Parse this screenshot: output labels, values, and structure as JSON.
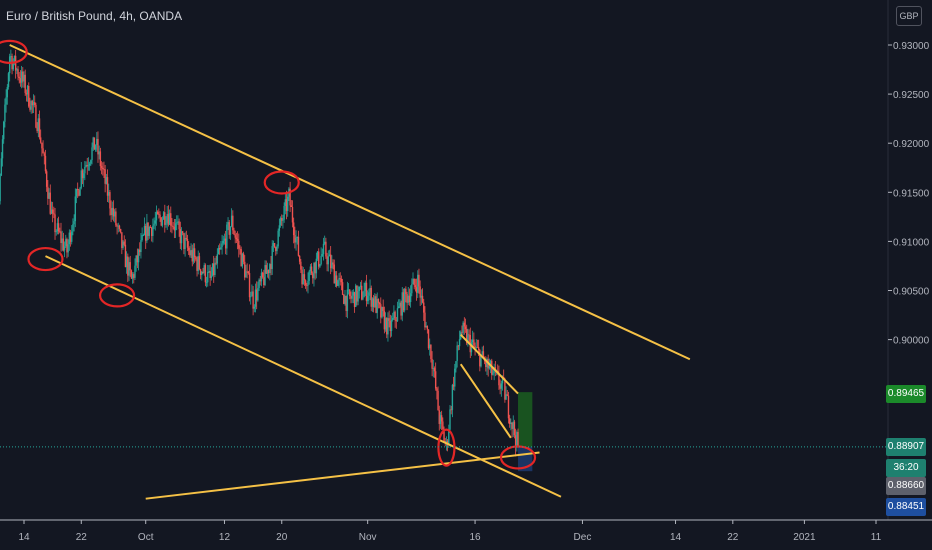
{
  "header": {
    "title": "Euro / British Pound, 4h, OANDA",
    "currency": "GBP"
  },
  "price_tags": {
    "target": "0.89465",
    "last": "0.88907",
    "countdown": "36:20",
    "stop": "0.88660",
    "low": "0.88451"
  },
  "colors": {
    "background": "#131722",
    "up_candle": "#26a69a",
    "down_candle": "#ef5350",
    "trendline": "#f5c146",
    "marker": "#e32626",
    "target_zone": "#1b5e20",
    "stop_zone": "#1e3a6e",
    "target_tag": "#1b8a2a",
    "stop_tag": "#1e4fa0",
    "last_tag": "#1e806f"
  },
  "chart_data": {
    "type": "candlestick",
    "title": "Euro / British Pound, 4h, OANDA",
    "y_unit": "GBP",
    "ylim": [
      0.8838,
      0.9325
    ],
    "y_ticks": [
      "0.93000",
      "0.92500",
      "0.92000",
      "0.91500",
      "0.91000",
      "0.90500",
      "0.90000"
    ],
    "x_ticks": [
      "14",
      "22",
      "Oct",
      "12",
      "20",
      "Nov",
      "16",
      "Dec",
      "14",
      "22",
      "2021",
      "11"
    ],
    "x_tick_dates": [
      "2020-09-14",
      "2020-09-22",
      "2020-10-01",
      "2020-10-12",
      "2020-10-20",
      "2020-11-01",
      "2020-11-16",
      "2020-12-01",
      "2020-12-14",
      "2020-12-22",
      "2021-01-01",
      "2021-01-11"
    ],
    "close_path": [
      {
        "date": "2020-09-10",
        "price": 0.908
      },
      {
        "date": "2020-09-11",
        "price": 0.92
      },
      {
        "date": "2020-09-12",
        "price": 0.929
      },
      {
        "date": "2020-09-14",
        "price": 0.926
      },
      {
        "date": "2020-09-16",
        "price": 0.922
      },
      {
        "date": "2020-09-18",
        "price": 0.912
      },
      {
        "date": "2020-09-20",
        "price": 0.909
      },
      {
        "date": "2020-09-22",
        "price": 0.917
      },
      {
        "date": "2020-09-24",
        "price": 0.92
      },
      {
        "date": "2020-09-26",
        "price": 0.914
      },
      {
        "date": "2020-09-29",
        "price": 0.906
      },
      {
        "date": "2020-10-01",
        "price": 0.911
      },
      {
        "date": "2020-10-04",
        "price": 0.913
      },
      {
        "date": "2020-10-07",
        "price": 0.909
      },
      {
        "date": "2020-10-10",
        "price": 0.906
      },
      {
        "date": "2020-10-13",
        "price": 0.912
      },
      {
        "date": "2020-10-16",
        "price": 0.904
      },
      {
        "date": "2020-10-18",
        "price": 0.907
      },
      {
        "date": "2020-10-21",
        "price": 0.9145
      },
      {
        "date": "2020-10-23",
        "price": 0.906
      },
      {
        "date": "2020-10-26",
        "price": 0.909
      },
      {
        "date": "2020-10-29",
        "price": 0.904
      },
      {
        "date": "2020-11-01",
        "price": 0.905
      },
      {
        "date": "2020-11-04",
        "price": 0.901
      },
      {
        "date": "2020-11-06",
        "price": 0.904
      },
      {
        "date": "2020-11-08",
        "price": 0.906
      },
      {
        "date": "2020-11-10",
        "price": 0.898
      },
      {
        "date": "2020-11-11",
        "price": 0.892
      },
      {
        "date": "2020-11-12",
        "price": 0.889
      },
      {
        "date": "2020-11-13",
        "price": 0.896
      },
      {
        "date": "2020-11-14",
        "price": 0.901
      },
      {
        "date": "2020-11-16",
        "price": 0.899
      },
      {
        "date": "2020-11-18",
        "price": 0.897
      },
      {
        "date": "2020-11-20",
        "price": 0.895
      },
      {
        "date": "2020-11-21",
        "price": 0.892
      },
      {
        "date": "2020-11-22",
        "price": 0.889
      }
    ],
    "trendlines": [
      {
        "name": "upper channel",
        "from": {
          "date": "2020-09-12",
          "price": 0.93
        },
        "to": {
          "date": "2020-12-16",
          "price": 0.898
        }
      },
      {
        "name": "lower channel",
        "from": {
          "date": "2020-09-17",
          "price": 0.9085
        },
        "to": {
          "date": "2020-11-28",
          "price": 0.884
        }
      },
      {
        "name": "rising support",
        "from": {
          "date": "2020-10-01",
          "price": 0.8838
        },
        "to": {
          "date": "2020-11-25",
          "price": 0.8885
        }
      },
      {
        "name": "wedge top",
        "from": {
          "date": "2020-11-14",
          "price": 0.9005
        },
        "to": {
          "date": "2020-11-22",
          "price": 0.8945
        }
      },
      {
        "name": "wedge bottom",
        "from": {
          "date": "2020-11-14",
          "price": 0.8975
        },
        "to": {
          "date": "2020-11-21",
          "price": 0.89
        }
      }
    ],
    "position": {
      "type": "long",
      "entry": 0.88907,
      "target": 0.89465,
      "stop": 0.8866,
      "start": "2020-11-22",
      "end": "2020-11-24"
    },
    "highlighted_points": [
      {
        "date": "2020-09-12",
        "price": 0.9293
      },
      {
        "date": "2020-09-17",
        "price": 0.9082
      },
      {
        "date": "2020-09-27",
        "price": 0.9045
      },
      {
        "date": "2020-10-20",
        "price": 0.916
      },
      {
        "date": "2020-11-12",
        "price": 0.889
      },
      {
        "date": "2020-11-22",
        "price": 0.888
      }
    ],
    "grid": false,
    "legend": "none"
  }
}
